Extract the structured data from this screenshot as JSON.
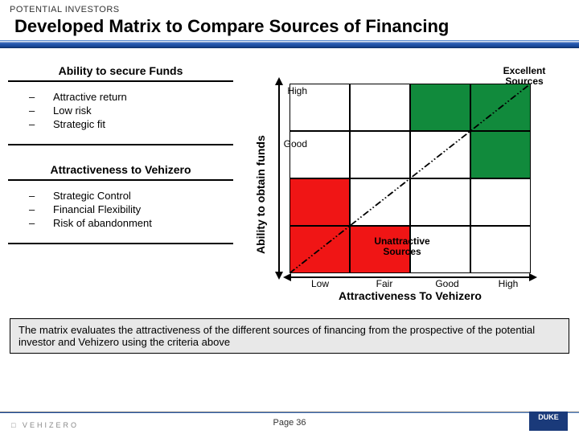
{
  "eyebrow": "POTENTIAL INVESTORS",
  "title": "Developed Matrix to Compare Sources of Financing",
  "left": {
    "section1": {
      "title": "Ability to secure Funds",
      "items": [
        "Attractive return",
        "Low risk",
        "Strategic fit"
      ]
    },
    "section2": {
      "title": "Attractiveness to Vehizero",
      "items": [
        "Strategic Control",
        "Financial Flexibility",
        "Risk of abandonment"
      ]
    }
  },
  "chart": {
    "y_label": "Ability to obtain funds",
    "x_label": "Attractiveness To Vehizero",
    "ticks": [
      "Low",
      "Fair",
      "Good",
      "High"
    ],
    "excellent_label": "Excellent\nSources",
    "unattractive_label": "Unattractive\nSources",
    "colors": {
      "excellent": "#118a3c",
      "unattractive": "#f01515",
      "grid": "#000000",
      "diag": "#000000"
    },
    "green_cells": [
      [
        2,
        0
      ],
      [
        3,
        0
      ],
      [
        3,
        1
      ]
    ],
    "red_cells": [
      [
        0,
        2
      ],
      [
        0,
        3
      ],
      [
        1,
        3
      ]
    ]
  },
  "bottom_text": "The matrix evaluates the attractiveness of the different sources of financing from the prospective of the potential investor and Vehizero using the criteria above",
  "page": "Page  36",
  "logo_left": "□ VEHIZERO",
  "logo_right": "DUKE"
}
